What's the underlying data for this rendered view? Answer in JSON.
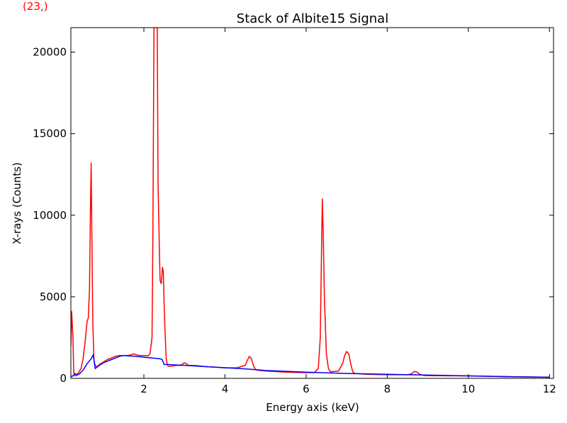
{
  "corner_label": "(23,)",
  "chart_data": {
    "type": "line",
    "title": "Stack of Albite15 Signal",
    "xlabel": "Energy axis (keV)",
    "ylabel": "X-rays (Counts)",
    "xlim": [
      0.2,
      12.1
    ],
    "ylim": [
      0,
      21500
    ],
    "xticks": [
      2,
      4,
      6,
      8,
      10,
      12
    ],
    "yticks": [
      0,
      5000,
      10000,
      15000,
      20000
    ],
    "grid": false,
    "series": [
      {
        "color": "#ff0000",
        "x": [
          0.2,
          0.22,
          0.25,
          0.27,
          0.3,
          0.34,
          0.4,
          0.45,
          0.5,
          0.55,
          0.6,
          0.63,
          0.66,
          0.68,
          0.7,
          0.72,
          0.74,
          0.77,
          0.8,
          0.85,
          0.9,
          1.0,
          1.1,
          1.2,
          1.3,
          1.4,
          1.5,
          1.6,
          1.7,
          1.75,
          1.8,
          1.9,
          2.0,
          2.1,
          2.15,
          2.2,
          2.22,
          2.24,
          2.25,
          2.27,
          2.28,
          2.3,
          2.33,
          2.35,
          2.38,
          2.4,
          2.43,
          2.46,
          2.48,
          2.5,
          2.52,
          2.55,
          2.58,
          2.6,
          2.65,
          2.7,
          2.8,
          2.9,
          3.0,
          3.05,
          3.1,
          3.3,
          3.5,
          3.8,
          4.0,
          4.3,
          4.5,
          4.55,
          4.6,
          4.65,
          4.7,
          4.75,
          4.8,
          5.0,
          5.5,
          6.0,
          6.2,
          6.3,
          6.35,
          6.38,
          6.4,
          6.42,
          6.45,
          6.5,
          6.55,
          6.6,
          6.8,
          6.9,
          6.95,
          7.0,
          7.05,
          7.1,
          7.15,
          7.2,
          7.5,
          8.0,
          8.5,
          8.6,
          8.65,
          8.7,
          8.75,
          8.8,
          8.9,
          9.0,
          10.0,
          11.0,
          12.0
        ],
        "y": [
          2000,
          4100,
          2500,
          400,
          150,
          200,
          400,
          600,
          1200,
          2200,
          3500,
          3700,
          5500,
          10000,
          13200,
          8000,
          3500,
          1100,
          800,
          700,
          850,
          1000,
          1150,
          1250,
          1350,
          1400,
          1400,
          1400,
          1450,
          1500,
          1450,
          1400,
          1400,
          1380,
          1500,
          2500,
          8000,
          17000,
          21500,
          21500,
          21500,
          21500,
          21500,
          12000,
          8000,
          6000,
          5800,
          6800,
          6500,
          4500,
          3000,
          1200,
          800,
          750,
          750,
          750,
          800,
          800,
          950,
          900,
          800,
          780,
          720,
          680,
          640,
          650,
          800,
          1100,
          1350,
          1200,
          800,
          550,
          500,
          450,
          380,
          350,
          350,
          600,
          2500,
          8000,
          11000,
          9000,
          5000,
          1500,
          600,
          400,
          450,
          900,
          1400,
          1650,
          1500,
          900,
          400,
          300,
          250,
          220,
          220,
          280,
          400,
          420,
          350,
          250,
          180,
          170,
          150,
          110,
          70
        ]
      },
      {
        "color": "#0000ff",
        "x": [
          0.2,
          0.25,
          0.3,
          0.35,
          0.4,
          0.5,
          0.6,
          0.7,
          0.75,
          0.8,
          0.85,
          0.9,
          1.0,
          1.1,
          1.2,
          1.3,
          1.4,
          1.5,
          1.6,
          1.8,
          2.0,
          2.2,
          2.4,
          2.45,
          2.5,
          2.6,
          2.8,
          3.0,
          3.5,
          4.0,
          4.5,
          5.0,
          6.0,
          7.0,
          8.0,
          9.0,
          10.0,
          11.0,
          12.0
        ],
        "y": [
          100,
          150,
          300,
          200,
          250,
          500,
          900,
          1200,
          1450,
          600,
          700,
          800,
          950,
          1050,
          1150,
          1250,
          1350,
          1400,
          1380,
          1350,
          1300,
          1250,
          1200,
          1150,
          850,
          850,
          820,
          800,
          720,
          650,
          580,
          480,
          380,
          300,
          250,
          200,
          150,
          100,
          70
        ]
      }
    ]
  }
}
